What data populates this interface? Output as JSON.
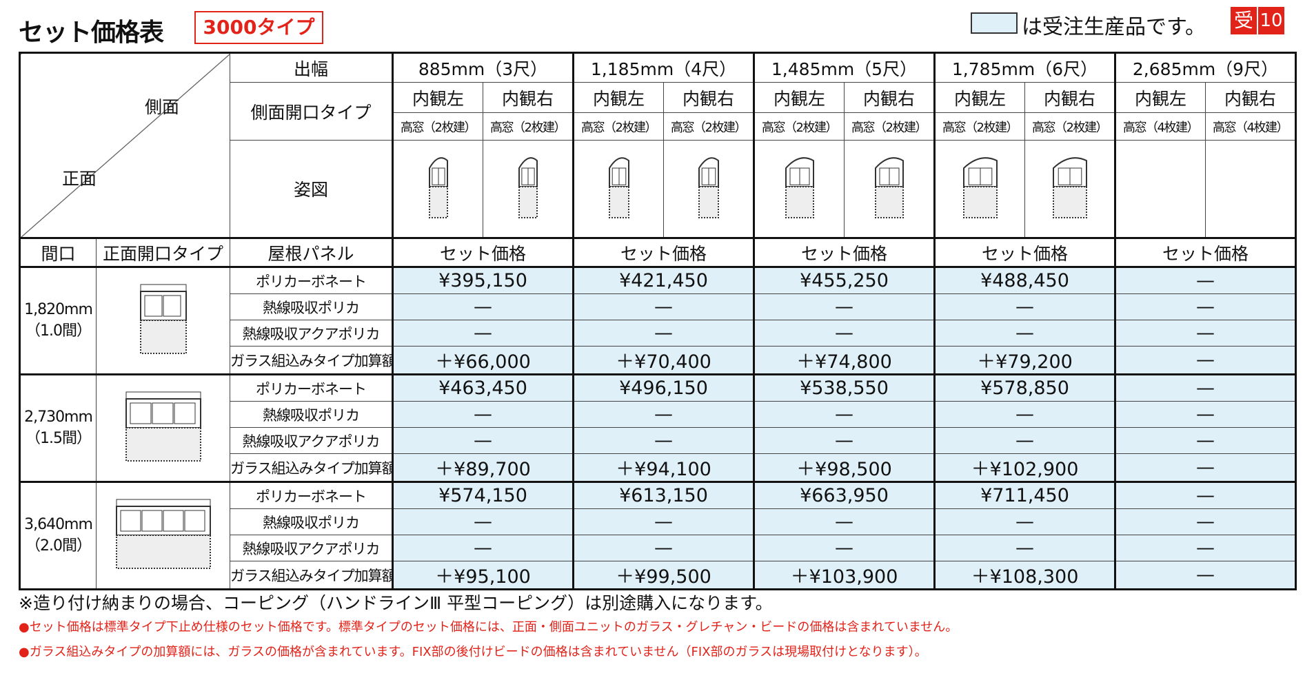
{
  "header": {
    "title": "セット価格表",
    "badge": "3000タイプ",
    "legend_text": "は受注生産品です。",
    "tag": "受",
    "tag_number": "10"
  },
  "table": {
    "corner_side": "側面",
    "corner_front": "正面",
    "width_label": "出幅",
    "side_opening_label": "側面開口タイプ",
    "figure_label": "姿図",
    "frontage_label": "間口",
    "front_opening_label": "正面開口タイプ",
    "roof_panel_label": "屋根パネル",
    "columns": [
      {
        "size": "885mm（3尺）",
        "sides": [
          {
            "view": "内観左",
            "window": "高窓（2枚建）"
          },
          {
            "view": "内観右",
            "window": "高窓（2枚建）"
          }
        ],
        "price_label": "セット価格"
      },
      {
        "size": "1,185mm（4尺）",
        "sides": [
          {
            "view": "内観左",
            "window": "高窓（2枚建）"
          },
          {
            "view": "内観右",
            "window": "高窓（2枚建）"
          }
        ],
        "price_label": "セット価格"
      },
      {
        "size": "1,485mm（5尺）",
        "sides": [
          {
            "view": "内観左",
            "window": "高窓（2枚建）"
          },
          {
            "view": "内観右",
            "window": "高窓（2枚建）"
          }
        ],
        "price_label": "セット価格"
      },
      {
        "size": "1,785mm（6尺）",
        "sides": [
          {
            "view": "内観左",
            "window": "高窓（2枚建）"
          },
          {
            "view": "内観右",
            "window": "高窓（2枚建）"
          }
        ],
        "price_label": "セット価格"
      },
      {
        "size": "2,685mm（9尺）",
        "sides": [
          {
            "view": "内観左",
            "window": "高窓（4枚建）"
          },
          {
            "view": "内観右",
            "window": "高窓（4枚建）"
          }
        ],
        "price_label": "セット価格"
      }
    ],
    "groups": [
      {
        "width": "1,820mm",
        "ken": "（1.0間）",
        "rows": [
          {
            "panel": "ポリカーボネート",
            "prices": [
              "¥395,150",
              "¥421,450",
              "¥455,250",
              "¥488,450",
              "—"
            ]
          },
          {
            "panel": "熱線吸収ポリカ",
            "prices": [
              "—",
              "—",
              "—",
              "—",
              "—"
            ]
          },
          {
            "panel": "熱線吸収アクアポリカ",
            "prices": [
              "—",
              "—",
              "—",
              "—",
              "—"
            ]
          },
          {
            "panel": "ガラス組込みタイプ加算額",
            "prices": [
              "＋¥66,000",
              "＋¥70,400",
              "＋¥74,800",
              "＋¥79,200",
              "—"
            ]
          }
        ]
      },
      {
        "width": "2,730mm",
        "ken": "（1.5間）",
        "rows": [
          {
            "panel": "ポリカーボネート",
            "prices": [
              "¥463,450",
              "¥496,150",
              "¥538,550",
              "¥578,850",
              "—"
            ]
          },
          {
            "panel": "熱線吸収ポリカ",
            "prices": [
              "—",
              "—",
              "—",
              "—",
              "—"
            ]
          },
          {
            "panel": "熱線吸収アクアポリカ",
            "prices": [
              "—",
              "—",
              "—",
              "—",
              "—"
            ]
          },
          {
            "panel": "ガラス組込みタイプ加算額",
            "prices": [
              "＋¥89,700",
              "＋¥94,100",
              "＋¥98,500",
              "＋¥102,900",
              "—"
            ]
          }
        ]
      },
      {
        "width": "3,640mm",
        "ken": "（2.0間）",
        "rows": [
          {
            "panel": "ポリカーボネート",
            "prices": [
              "¥574,150",
              "¥613,150",
              "¥663,950",
              "¥711,450",
              "—"
            ]
          },
          {
            "panel": "熱線吸収ポリカ",
            "prices": [
              "—",
              "—",
              "—",
              "—",
              "—"
            ]
          },
          {
            "panel": "熱線吸収アクアポリカ",
            "prices": [
              "—",
              "—",
              "—",
              "—",
              "—"
            ]
          },
          {
            "panel": "ガラス組込みタイプ加算額",
            "prices": [
              "＋¥95,100",
              "＋¥99,500",
              "＋¥103,900",
              "＋¥108,300",
              "—"
            ]
          }
        ]
      }
    ]
  },
  "notes": [
    "※造り付け納まりの場合、コーピング（ハンドラインⅢ 平型コーピング）は別途購入になります。",
    "●セット価格は標準タイプ下止め仕様のセット価格です。標準タイプのセット価格には、正面・側面ユニットのガラス・グレチャン・ビードの価格は含まれていません。",
    "●ガラス組込みタイプの加算額には、ガラスの価格が含まれています。FIX部の後付けビードの価格は含まれていません（FIX部のガラスは現場取付けとなります）。"
  ]
}
